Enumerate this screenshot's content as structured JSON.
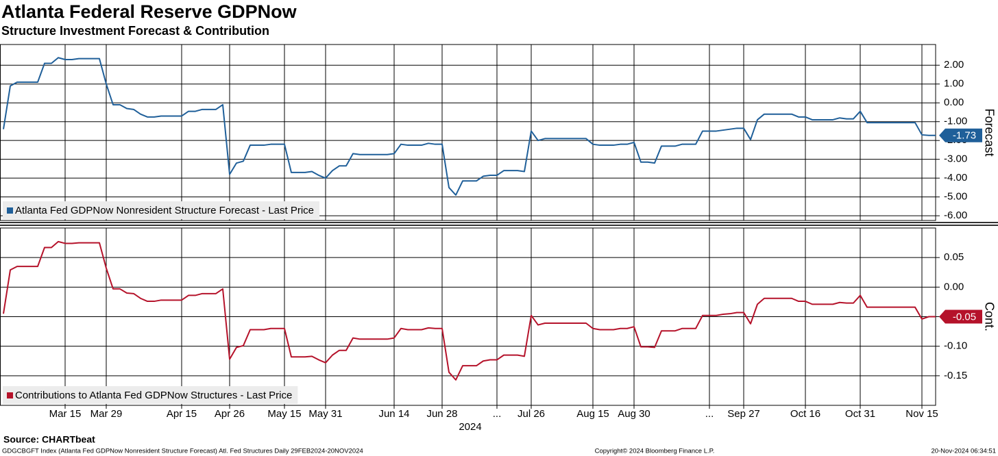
{
  "title": "Atlanta Federal Reserve GDPNow",
  "subtitle": "Structure Investment Forecast & Contribution",
  "source": "Source: CHARTbeat",
  "footer_left": "GDGCBGFT Index (Atlanta Fed GDPNow Nonresident Structure Forecast) Atl. Fed Structures  Daily 29FEB2024-20NOV2024",
  "footer_center": "Copyright© 2024 Bloomberg Finance L.P.",
  "footer_right": "20-Nov-2024 06:34:51",
  "chart_data": [
    {
      "type": "line",
      "y_label": "Forecast",
      "legend": "lower left",
      "grid": true,
      "ylim": [
        -6.25,
        3.1
      ],
      "yticks": [
        {
          "value": -6,
          "label": "-6.00"
        },
        {
          "value": -5,
          "label": "-5.00"
        },
        {
          "value": -4,
          "label": "-4.00"
        },
        {
          "value": -3,
          "label": "-3.00"
        },
        {
          "value": -2,
          "label": "-2.00"
        },
        {
          "value": -1,
          "label": "-1.00"
        },
        {
          "value": 0,
          "label": "0.00"
        },
        {
          "value": 1,
          "label": "1.00"
        },
        {
          "value": 2,
          "label": "2.00"
        }
      ],
      "series": [
        {
          "name": "Atlanta Fed GDPNow Nonresident Structure Forecast - Last Price",
          "color": "#1f5f99",
          "values": [
            -1.4,
            0.9,
            1.1,
            1.1,
            1.1,
            1.1,
            2.1,
            2.1,
            2.4,
            2.3,
            2.3,
            2.35,
            2.35,
            2.35,
            2.35,
            1.0,
            -0.1,
            -0.1,
            -0.3,
            -0.35,
            -0.6,
            -0.75,
            -0.75,
            -0.7,
            -0.7,
            -0.7,
            -0.7,
            -0.45,
            -0.45,
            -0.35,
            -0.35,
            -0.35,
            -0.1,
            -3.8,
            -3.2,
            -3.1,
            -2.25,
            -2.25,
            -2.25,
            -2.2,
            -2.2,
            -2.2,
            -3.7,
            -3.7,
            -3.7,
            -3.65,
            -3.85,
            -4.0,
            -3.6,
            -3.35,
            -3.35,
            -2.7,
            -2.75,
            -2.75,
            -2.75,
            -2.75,
            -2.75,
            -2.7,
            -2.2,
            -2.25,
            -2.25,
            -2.25,
            -2.15,
            -2.2,
            -2.2,
            -4.5,
            -4.9,
            -4.15,
            -4.15,
            -4.15,
            -3.9,
            -3.85,
            -3.85,
            -3.6,
            -3.6,
            -3.6,
            -3.65,
            -1.5,
            -2.0,
            -1.9,
            -1.9,
            -1.9,
            -1.9,
            -1.9,
            -1.9,
            -1.9,
            -2.2,
            -2.25,
            -2.25,
            -2.25,
            -2.2,
            -2.2,
            -2.1,
            -3.15,
            -3.15,
            -3.2,
            -2.3,
            -2.3,
            -2.3,
            -2.2,
            -2.2,
            -2.2,
            -1.5,
            -1.5,
            -1.5,
            -1.45,
            -1.4,
            -1.35,
            -1.35,
            -1.95,
            -0.9,
            -0.6,
            -0.6,
            -0.6,
            -0.6,
            -0.6,
            -0.75,
            -0.75,
            -0.9,
            -0.9,
            -0.9,
            -0.9,
            -0.8,
            -0.85,
            -0.85,
            -0.45,
            -1.05,
            -1.05,
            -1.05,
            -1.05,
            -1.05,
            -1.05,
            -1.05,
            -1.05,
            -1.7,
            -1.73,
            -1.73
          ]
        }
      ]
    },
    {
      "type": "line",
      "y_label": "Cont.",
      "legend": "lower left",
      "grid": true,
      "x_label": "2024",
      "categories": [
        null,
        null,
        null,
        null,
        null,
        null,
        null,
        null,
        null,
        "Mar 15",
        null,
        null,
        null,
        null,
        null,
        "Mar 29",
        null,
        null,
        null,
        null,
        null,
        null,
        null,
        null,
        null,
        null,
        "Apr 15",
        null,
        null,
        null,
        null,
        null,
        null,
        "Apr 26",
        null,
        null,
        null,
        null,
        null,
        null,
        null,
        "May 15",
        null,
        null,
        null,
        null,
        null,
        "May 31",
        null,
        null,
        null,
        null,
        null,
        null,
        null,
        null,
        null,
        "Jun 14",
        null,
        null,
        null,
        null,
        null,
        null,
        "Jun 28",
        null,
        null,
        null,
        null,
        null,
        null,
        null,
        "...",
        null,
        null,
        null,
        null,
        "Jul 26",
        null,
        null,
        null,
        null,
        null,
        null,
        null,
        null,
        "Aug 15",
        null,
        null,
        null,
        null,
        null,
        "Aug 30",
        null,
        null,
        null,
        null,
        null,
        null,
        null,
        null,
        null,
        null,
        "...",
        null,
        null,
        null,
        null,
        "Sep 27",
        null,
        null,
        null,
        null,
        null,
        null,
        null,
        null,
        "Oct 16",
        null,
        null,
        null,
        null,
        null,
        null,
        null,
        "Oct 31",
        null,
        null,
        null,
        null,
        null,
        null,
        null,
        null,
        "Nov 15",
        null,
        null
      ],
      "ylim": [
        -0.2,
        0.1
      ],
      "yticks": [
        -0.15,
        {
          "value": -0.1,
          "label": "-0.10"
        },
        -0.05,
        {
          "value": 0,
          "label": "0.00"
        },
        0.05
      ],
      "series": [
        {
          "name": "Contributions to Atlanta Fed GDPNow Structures - Last Price",
          "color": "#b5122a",
          "values": [
            -0.045,
            0.029,
            0.035,
            0.035,
            0.035,
            0.035,
            0.067,
            0.067,
            0.077,
            0.074,
            0.074,
            0.075,
            0.075,
            0.075,
            0.075,
            0.032,
            -0.003,
            -0.003,
            -0.01,
            -0.011,
            -0.019,
            -0.024,
            -0.024,
            -0.022,
            -0.022,
            -0.022,
            -0.022,
            -0.014,
            -0.014,
            -0.011,
            -0.011,
            -0.011,
            -0.003,
            -0.122,
            -0.102,
            -0.099,
            -0.072,
            -0.072,
            -0.072,
            -0.07,
            -0.07,
            -0.07,
            -0.118,
            -0.118,
            -0.118,
            -0.117,
            -0.123,
            -0.128,
            -0.115,
            -0.107,
            -0.107,
            -0.086,
            -0.088,
            -0.088,
            -0.088,
            -0.088,
            -0.088,
            -0.086,
            -0.07,
            -0.072,
            -0.072,
            -0.072,
            -0.069,
            -0.07,
            -0.07,
            -0.144,
            -0.157,
            -0.133,
            -0.133,
            -0.133,
            -0.125,
            -0.123,
            -0.123,
            -0.115,
            -0.115,
            -0.115,
            -0.117,
            -0.048,
            -0.064,
            -0.061,
            -0.061,
            -0.061,
            -0.061,
            -0.061,
            -0.061,
            -0.061,
            -0.07,
            -0.072,
            -0.072,
            -0.072,
            -0.07,
            -0.07,
            -0.067,
            -0.101,
            -0.101,
            -0.102,
            -0.074,
            -0.074,
            -0.074,
            -0.07,
            -0.07,
            -0.07,
            -0.048,
            -0.048,
            -0.048,
            -0.046,
            -0.045,
            -0.043,
            -0.043,
            -0.062,
            -0.029,
            -0.019,
            -0.019,
            -0.019,
            -0.019,
            -0.019,
            -0.024,
            -0.024,
            -0.029,
            -0.029,
            -0.029,
            -0.029,
            -0.026,
            -0.027,
            -0.027,
            -0.014,
            -0.034,
            -0.034,
            -0.034,
            -0.034,
            -0.034,
            -0.034,
            -0.034,
            -0.034,
            -0.054,
            -0.05,
            -0.05
          ]
        }
      ]
    }
  ]
}
